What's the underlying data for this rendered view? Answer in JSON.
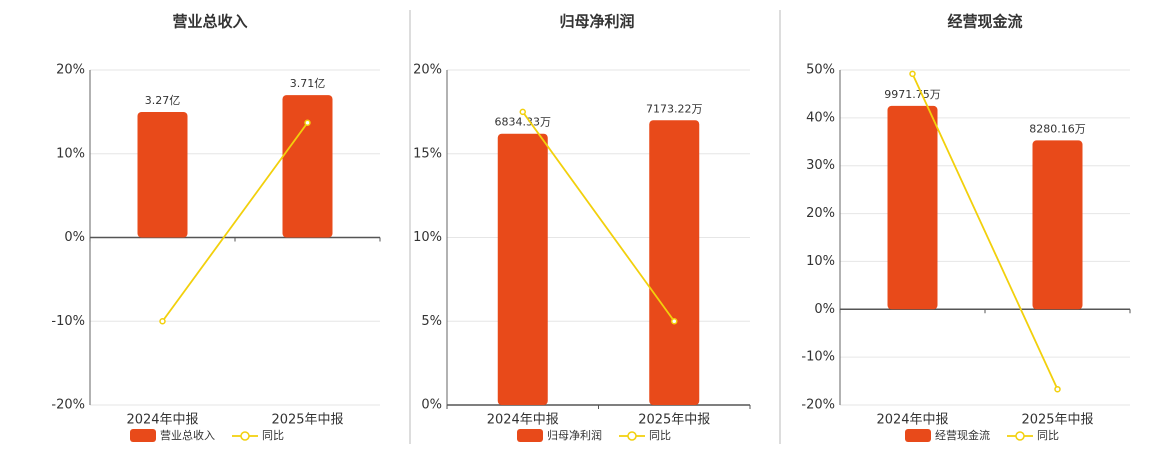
{
  "chart_data": [
    {
      "type": "combo",
      "title": "营业总收入",
      "categories": [
        "2024年中报",
        "2025年中报"
      ],
      "ylim": [
        -20,
        20
      ],
      "yticks": [
        {
          "value": -20,
          "label": "-20%"
        },
        {
          "value": -10,
          "label": "-10%"
        },
        {
          "value": 0,
          "label": "0%"
        },
        {
          "value": 10,
          "label": "10%"
        },
        {
          "value": 20,
          "label": "20%"
        }
      ],
      "grid": true,
      "series": [
        {
          "name": "营业总收入",
          "type": "bar",
          "color": "#e84a1a",
          "values": [
            3.27,
            3.71
          ],
          "value_labels": [
            "3.27亿",
            "3.71亿"
          ]
        },
        {
          "name": "同比",
          "type": "line",
          "color": "#f2d00c",
          "values": [
            -10,
            13.7
          ]
        }
      ]
    },
    {
      "type": "combo",
      "title": "归母净利润",
      "categories": [
        "2024年中报",
        "2025年中报"
      ],
      "ylim": [
        0,
        20
      ],
      "yticks": [
        {
          "value": 0,
          "label": "0%"
        },
        {
          "value": 5,
          "label": "5%"
        },
        {
          "value": 10,
          "label": "10%"
        },
        {
          "value": 15,
          "label": "15%"
        },
        {
          "value": 20,
          "label": "20%"
        }
      ],
      "grid": true,
      "series": [
        {
          "name": "归母净利润",
          "type": "bar",
          "color": "#e84a1a",
          "values": [
            6834.33,
            7173.22
          ],
          "value_labels": [
            "6834.33万",
            "7173.22万"
          ]
        },
        {
          "name": "同比",
          "type": "line",
          "color": "#f2d00c",
          "values": [
            17.5,
            5
          ]
        }
      ]
    },
    {
      "type": "combo",
      "title": "经营现金流",
      "categories": [
        "2024年中报",
        "2025年中报"
      ],
      "ylim": [
        -20,
        50
      ],
      "yticks": [
        {
          "value": -20,
          "label": "-20%"
        },
        {
          "value": -10,
          "label": "-10%"
        },
        {
          "value": 0,
          "label": "0%"
        },
        {
          "value": 10,
          "label": "10%"
        },
        {
          "value": 20,
          "label": "20%"
        },
        {
          "value": 30,
          "label": "30%"
        },
        {
          "value": 40,
          "label": "40%"
        },
        {
          "value": 50,
          "label": "50%"
        }
      ],
      "grid": true,
      "series": [
        {
          "name": "经营现金流",
          "type": "bar",
          "color": "#e84a1a",
          "values": [
            9971.75,
            8280.16
          ],
          "value_labels": [
            "9971.75万",
            "8280.16万"
          ]
        },
        {
          "name": "同比",
          "type": "line",
          "color": "#f2d00c",
          "values": [
            49.2,
            -16.7
          ]
        }
      ]
    }
  ]
}
